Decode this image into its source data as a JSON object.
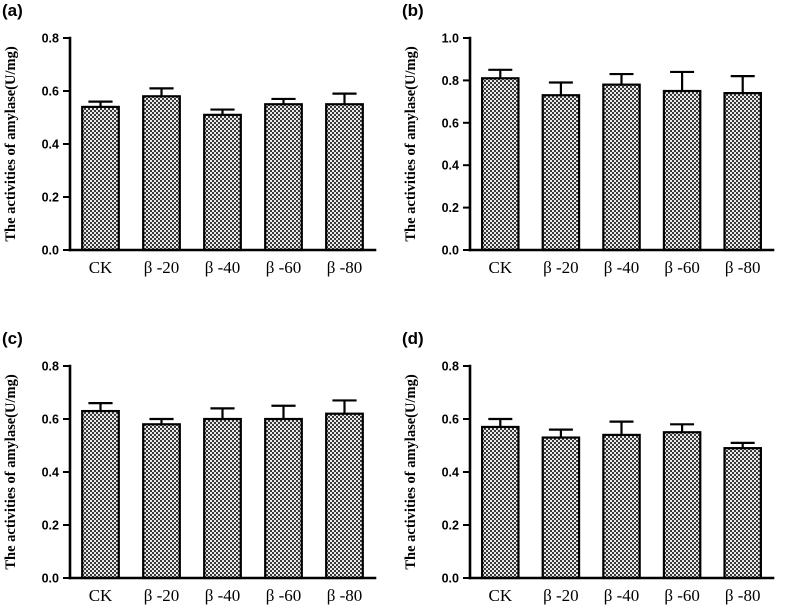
{
  "chart_data": [
    {
      "type": "bar",
      "panel": "(a)",
      "ylabel": "The activities of amylase(U/mg)",
      "categories": [
        "CK",
        "β -20",
        "β -40",
        "β -60",
        "β -80"
      ],
      "values": [
        0.54,
        0.58,
        0.51,
        0.55,
        0.55
      ],
      "errors": [
        0.02,
        0.03,
        0.02,
        0.02,
        0.04
      ],
      "ylim": [
        0,
        0.8
      ],
      "yticks": [
        "0.0",
        "0.2",
        "0.4",
        "0.6",
        "0.8"
      ],
      "grid": false
    },
    {
      "type": "bar",
      "panel": "(b)",
      "ylabel": "The activities of amylase(U/mg)",
      "categories": [
        "CK",
        "β -20",
        "β -40",
        "β -60",
        "β -80"
      ],
      "values": [
        0.81,
        0.73,
        0.78,
        0.75,
        0.74
      ],
      "errors": [
        0.04,
        0.06,
        0.05,
        0.09,
        0.08
      ],
      "ylim": [
        0,
        1.0
      ],
      "yticks": [
        "0.0",
        "0.2",
        "0.4",
        "0.6",
        "0.8",
        "1.0"
      ],
      "grid": false
    },
    {
      "type": "bar",
      "panel": "(c)",
      "ylabel": "The activities of amylase(U/mg)",
      "categories": [
        "CK",
        "β -20",
        "β -40",
        "β -60",
        "β -80"
      ],
      "values": [
        0.63,
        0.58,
        0.6,
        0.6,
        0.62
      ],
      "errors": [
        0.03,
        0.02,
        0.04,
        0.05,
        0.05
      ],
      "ylim": [
        0,
        0.8
      ],
      "yticks": [
        "0.0",
        "0.2",
        "0.4",
        "0.6",
        "0.8"
      ],
      "grid": false
    },
    {
      "type": "bar",
      "panel": "(d)",
      "ylabel": "The activities of amylase(U/mg)",
      "categories": [
        "CK",
        "β -20",
        "β -40",
        "β -60",
        "β -80"
      ],
      "values": [
        0.57,
        0.53,
        0.54,
        0.55,
        0.49
      ],
      "errors": [
        0.03,
        0.03,
        0.05,
        0.03,
        0.02
      ],
      "ylim": [
        0,
        0.8
      ],
      "yticks": [
        "0.0",
        "0.2",
        "0.4",
        "0.6",
        "0.8"
      ],
      "grid": false
    }
  ]
}
